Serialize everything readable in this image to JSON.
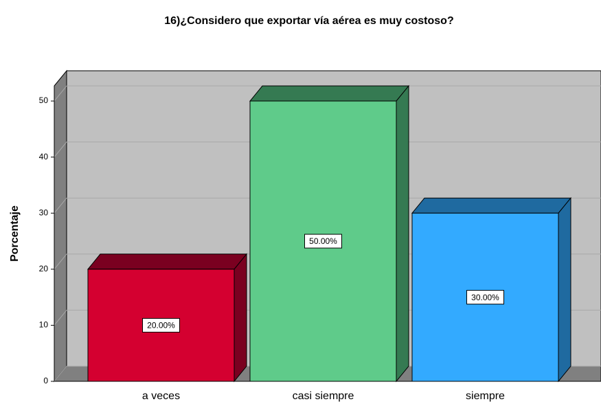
{
  "chart_data": {
    "type": "bar3d",
    "title": "16)¿Considero que exportar vía aérea es muy costoso?",
    "ylabel": "Porcentaje",
    "categories": [
      "a veces",
      "casi siempre",
      "siempre"
    ],
    "values": [
      20,
      50,
      30
    ],
    "value_labels": [
      "20.00%",
      "50.00%",
      "30.00%"
    ],
    "colors": [
      "#d40030",
      "#5fcb8a",
      "#33aaff"
    ],
    "shade_colors": [
      "#7a0020",
      "#357a52",
      "#1f6aa0"
    ],
    "ylim": [
      0,
      52.7
    ],
    "yticks": [
      0,
      10,
      20,
      30,
      40,
      50
    ],
    "grid": true
  }
}
